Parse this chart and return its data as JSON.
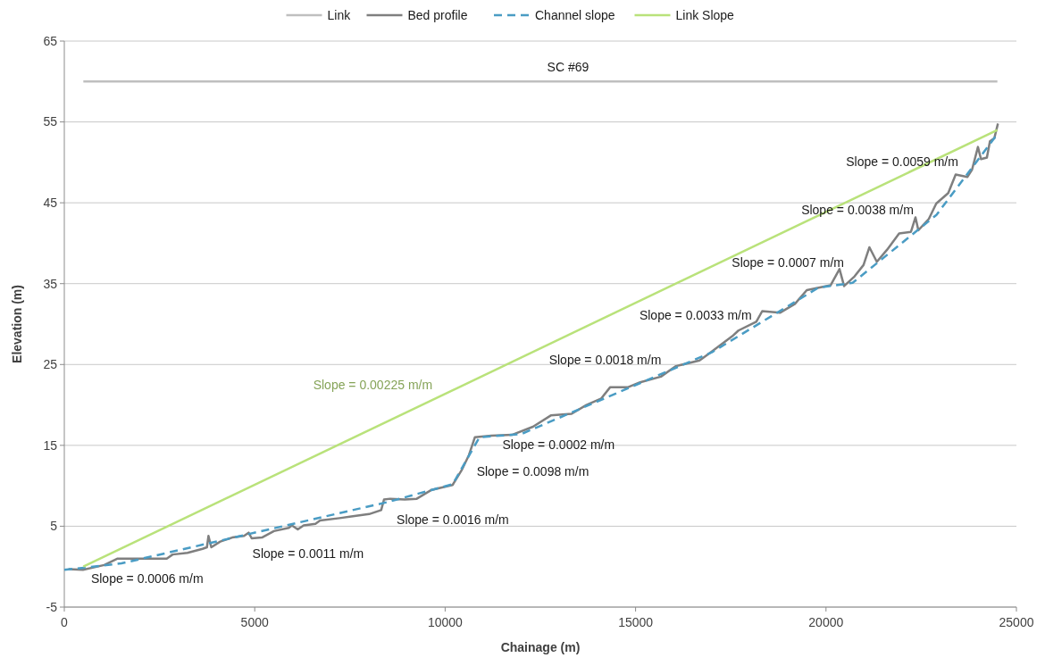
{
  "chart_data": {
    "type": "line",
    "xlabel": "Chainage (m)",
    "ylabel": "Elevation (m)",
    "xlim": [
      0,
      25000
    ],
    "xticks": [
      0,
      5000,
      10000,
      15000,
      20000,
      25000
    ],
    "ylim": [
      -5,
      65
    ],
    "yticks": [
      -5,
      5,
      15,
      25,
      35,
      45,
      55,
      65
    ],
    "grid": "y",
    "legend": "top",
    "marker": "none",
    "series": [
      {
        "name": "Link",
        "color": "#bfbfbf",
        "x": [
          500,
          24500
        ],
        "values": [
          60,
          60
        ]
      },
      {
        "name": "Bed profile",
        "color": "#7f7f7f",
        "x": [
          110,
          490,
          1050,
          1400,
          1595,
          2690,
          2845,
          3235,
          3630,
          3745,
          3785,
          3860,
          4095,
          4410,
          4720,
          4840,
          4920,
          5190,
          5505,
          5895,
          5975,
          6130,
          6285,
          6595,
          6715,
          7225,
          7535,
          8005,
          8320,
          8395,
          8555,
          8940,
          9255,
          9645,
          10195,
          10430,
          10625,
          10780,
          11210,
          11755,
          12305,
          12775,
          13320,
          13710,
          14100,
          14335,
          14805,
          15120,
          15665,
          16060,
          16680,
          16915,
          17540,
          17700,
          18170,
          18325,
          18790,
          19185,
          19495,
          20120,
          20355,
          20475,
          20750,
          20985,
          21140,
          21335,
          21605,
          21920,
          22230,
          22350,
          22425,
          22700,
          22895,
          23210,
          23405,
          23715,
          23835,
          23990,
          24070,
          24225,
          24305,
          24420,
          24515
        ],
        "values": [
          -0.3,
          -0.4,
          0.2,
          1.0,
          1.0,
          1.0,
          1.5,
          1.7,
          2.2,
          2.4,
          3.8,
          2.4,
          3.1,
          3.6,
          3.8,
          4.2,
          3.5,
          3.6,
          4.4,
          4.8,
          5.1,
          4.6,
          5.1,
          5.3,
          5.7,
          6.0,
          6.2,
          6.5,
          7.0,
          8.3,
          8.4,
          8.3,
          8.4,
          9.5,
          10.1,
          11.9,
          13.8,
          16.0,
          16.2,
          16.3,
          17.3,
          18.7,
          18.9,
          20.0,
          20.8,
          22.2,
          22.2,
          22.8,
          23.5,
          24.8,
          25.5,
          26.3,
          28.5,
          29.2,
          30.3,
          31.6,
          31.4,
          32.5,
          34.2,
          34.8,
          36.8,
          34.7,
          35.9,
          37.3,
          39.5,
          37.7,
          39.2,
          41.2,
          41.4,
          43.2,
          41.6,
          43.0,
          44.9,
          46.2,
          48.5,
          48.2,
          49.1,
          51.9,
          50.4,
          50.6,
          52.6,
          53.0,
          54.8
        ]
      },
      {
        "name": "Channel slope",
        "color": "#4a9cc4",
        "line_style": "dashed",
        "x": [
          0,
          1500,
          8500,
          10200,
          10900,
          12000,
          17000,
          19800,
          20700,
          22900,
          24500
        ],
        "values": [
          -0.4,
          0.4,
          8.0,
          10.2,
          16.0,
          16.4,
          26.5,
          34.5,
          35.1,
          43.5,
          53.5
        ]
      },
      {
        "name": "Link Slope",
        "color": "#b9e27a",
        "x": [
          500,
          24500
        ],
        "values": [
          0,
          54
        ]
      }
    ],
    "annotations": [
      "SC #69",
      "Slope = 0.0006 m/m",
      "Slope = 0.0011 m/m",
      "Slope = 0.0016 m/m",
      "Slope = 0.0098 m/m",
      "Slope = 0.0002 m/m",
      "Slope = 0.0018 m/m",
      "Slope = 0.0033 m/m",
      "Slope = 0.0007 m/m",
      "Slope = 0.0038 m/m",
      "Slope = 0.0059 m/m",
      "Slope = 0.00225 m/m"
    ]
  }
}
